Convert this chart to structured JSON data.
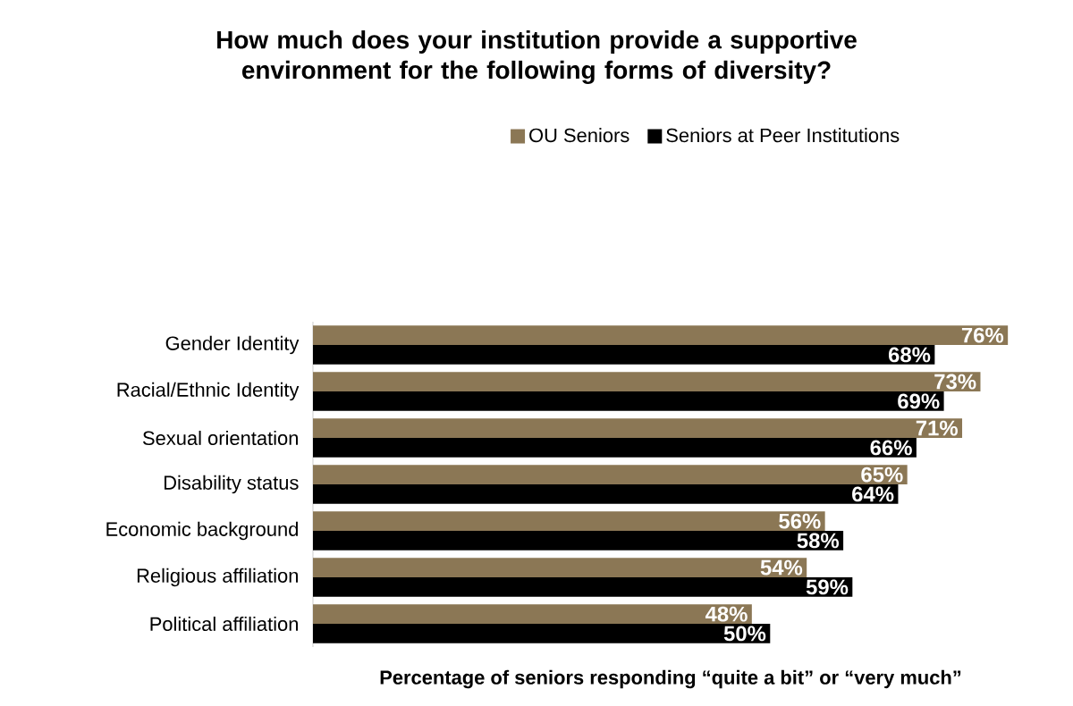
{
  "chart_data": {
    "type": "bar",
    "orientation": "horizontal",
    "title": "How much does your institution provide a supportive environment for the following forms of diversity?",
    "xlabel": "Percentage of seniors responding “quite a bit” or “very much”",
    "categories": [
      "Gender Identity",
      "Racial/Ethnic Identity",
      "Sexual orientation",
      "Disability status",
      "Economic background",
      "Religious affiliation",
      "Political affiliation"
    ],
    "series": [
      {
        "name": "OU Seniors",
        "color": "#8b7755",
        "values": [
          76,
          73,
          71,
          65,
          56,
          54,
          48
        ],
        "value_labels": [
          "76%",
          "73%",
          "71%",
          "65%",
          "56%",
          "54%",
          "48%"
        ]
      },
      {
        "name": "Seniors at Peer Institutions",
        "color": "#000000",
        "values": [
          68,
          69,
          66,
          64,
          58,
          59,
          50
        ],
        "value_labels": [
          "68%",
          "69%",
          "66%",
          "64%",
          "58%",
          "59%",
          "50%"
        ]
      }
    ],
    "legend": "top",
    "tick_labels": "y"
  }
}
